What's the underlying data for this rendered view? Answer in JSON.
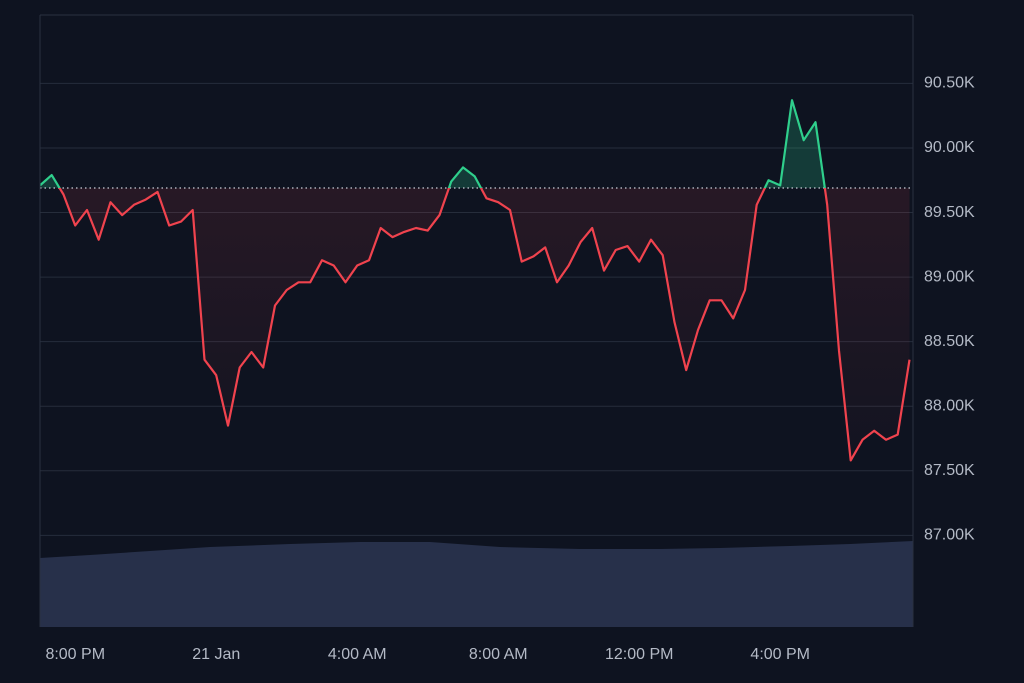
{
  "chart_data": {
    "type": "baseline-line",
    "x": [
      "20 Jan 19:00",
      "20 Jan 19:20",
      "20 Jan 19:40",
      "20 Jan 20:00",
      "20 Jan 20:20",
      "20 Jan 20:40",
      "20 Jan 21:00",
      "20 Jan 21:20",
      "20 Jan 21:40",
      "20 Jan 22:00",
      "20 Jan 22:20",
      "20 Jan 22:40",
      "20 Jan 23:00",
      "20 Jan 23:20",
      "20 Jan 23:40",
      "21 Jan 00:00",
      "21 Jan 00:20",
      "21 Jan 00:40",
      "21 Jan 01:00",
      "21 Jan 01:20",
      "21 Jan 01:40",
      "21 Jan 02:00",
      "21 Jan 02:20",
      "21 Jan 02:40",
      "21 Jan 03:00",
      "21 Jan 03:20",
      "21 Jan 03:40",
      "21 Jan 04:00",
      "21 Jan 04:20",
      "21 Jan 04:40",
      "21 Jan 05:00",
      "21 Jan 05:20",
      "21 Jan 05:40",
      "21 Jan 06:00",
      "21 Jan 06:20",
      "21 Jan 06:40",
      "21 Jan 07:00",
      "21 Jan 07:20",
      "21 Jan 07:40",
      "21 Jan 08:00",
      "21 Jan 08:20",
      "21 Jan 08:40",
      "21 Jan 09:00",
      "21 Jan 09:20",
      "21 Jan 09:40",
      "21 Jan 10:00",
      "21 Jan 10:20",
      "21 Jan 10:40",
      "21 Jan 11:00",
      "21 Jan 11:20",
      "21 Jan 11:40",
      "21 Jan 12:00",
      "21 Jan 12:20",
      "21 Jan 12:40",
      "21 Jan 13:00",
      "21 Jan 13:20",
      "21 Jan 13:40",
      "21 Jan 14:00",
      "21 Jan 14:20",
      "21 Jan 14:40",
      "21 Jan 15:00",
      "21 Jan 15:20",
      "21 Jan 15:40",
      "21 Jan 16:00",
      "21 Jan 16:20",
      "21 Jan 16:40",
      "21 Jan 17:00",
      "21 Jan 17:20",
      "21 Jan 17:40",
      "21 Jan 18:00",
      "21 Jan 18:20",
      "21 Jan 18:40",
      "21 Jan 19:00",
      "21 Jan 19:20",
      "21 Jan 19:40"
    ],
    "values": [
      89710,
      89790,
      89640,
      89400,
      89520,
      89290,
      89580,
      89480,
      89560,
      89600,
      89660,
      89400,
      89430,
      89520,
      88360,
      88240,
      87850,
      88300,
      88420,
      88300,
      88780,
      88900,
      88960,
      88960,
      89130,
      89090,
      88960,
      89090,
      89130,
      89380,
      89310,
      89350,
      89380,
      89360,
      89480,
      89740,
      89850,
      89780,
      89610,
      89580,
      89520,
      89120,
      89160,
      89230,
      88960,
      89090,
      89270,
      89380,
      89050,
      89210,
      89240,
      89120,
      89290,
      89170,
      88650,
      88280,
      88590,
      88820,
      88820,
      88680,
      88900,
      89560,
      89750,
      89710,
      90370,
      90060,
      90200,
      89560,
      88430,
      87580,
      87740,
      87810,
      87740,
      87780,
      88360
    ],
    "baseline": 89690,
    "up_color": "#2fcf8c",
    "down_color": "#f0434e",
    "xlim": [
      "20 Jan 19:00",
      "21 Jan 19:46"
    ],
    "xticks": [
      {
        "value": "20 Jan 20:00",
        "label": "8:00 PM"
      },
      {
        "value": "21 Jan 00:00",
        "label": "21 Jan"
      },
      {
        "value": "21 Jan 04:00",
        "label": "4:00 AM"
      },
      {
        "value": "21 Jan 08:00",
        "label": "8:00 AM"
      },
      {
        "value": "21 Jan 12:00",
        "label": "12:00 PM"
      },
      {
        "value": "21 Jan 16:00",
        "label": "4:00 PM"
      }
    ],
    "ylim": [
      86290,
      91030
    ],
    "yticks": [
      {
        "value": 87000,
        "label": "87.00K"
      },
      {
        "value": 87500,
        "label": "87.50K"
      },
      {
        "value": 88000,
        "label": "88.00K"
      },
      {
        "value": 88500,
        "label": "88.50K"
      },
      {
        "value": 89000,
        "label": "89.00K"
      },
      {
        "value": 89500,
        "label": "89.50K"
      },
      {
        "value": 90000,
        "label": "90.00K"
      },
      {
        "value": 90500,
        "label": "90.50K"
      }
    ],
    "grid": true
  }
}
